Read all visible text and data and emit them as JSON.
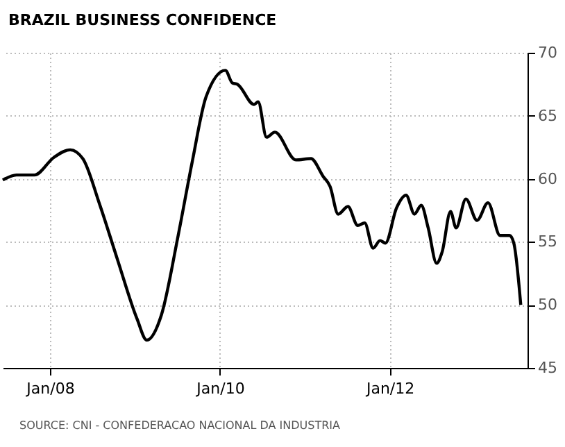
{
  "chart_data": {
    "type": "line",
    "title": "BRAZIL BUSINESS CONFIDENCE",
    "annotations": [
      "SOURCE: CNI - CONFEDERACAO NACIONAL DA INDUSTRIA"
    ],
    "x": [
      "2007-06-12",
      "2007-08-10",
      "2007-10-26",
      "2008-01-18",
      "2008-03-28",
      "2008-05-21",
      "2008-08-01",
      "2008-10-17",
      "2009-01-09",
      "2009-02-20",
      "2009-04-24",
      "2009-07-05",
      "2009-09-03",
      "2009-11-02",
      "2010-01-24",
      "2010-02-23",
      "2010-03-17",
      "2010-05-27",
      "2010-06-14",
      "2010-07-20",
      "2010-08-25",
      "2010-11-23",
      "2011-01-27",
      "2011-03-20",
      "2011-04-19",
      "2011-05-24",
      "2011-07-05",
      "2011-08-16",
      "2011-09-15",
      "2011-10-21",
      "2011-11-20",
      "2011-12-13",
      "2012-01-30",
      "2012-03-11",
      "2012-04-16",
      "2012-05-15",
      "2012-06-14",
      "2012-07-20",
      "2012-08-13",
      "2012-09-18",
      "2012-10-12",
      "2012-11-23",
      "2013-01-10",
      "2013-02-26",
      "2013-04-19",
      "2013-05-30",
      "2013-06-17",
      "2013-07-17"
    ],
    "series": [
      {
        "color": "#000000",
        "values": [
          59.9,
          60.3,
          60.3,
          61.7,
          62.3,
          61.6,
          58.0,
          53.6,
          48.9,
          47.2,
          49.2,
          55.5,
          61.3,
          66.5,
          68.6,
          67.6,
          67.5,
          65.9,
          66.1,
          63.3,
          63.7,
          61.5,
          61.6,
          60.2,
          59.4,
          57.2,
          57.8,
          56.3,
          56.5,
          54.5,
          55.1,
          54.9,
          57.7,
          58.7,
          57.2,
          57.9,
          56.1,
          53.3,
          54.2,
          57.4,
          56.1,
          58.4,
          56.7,
          58.1,
          55.5,
          55.5,
          54.9,
          50.0
        ]
      }
    ],
    "xlim": [
      "2007-06-12",
      "2013-08-15"
    ],
    "xticks": [
      {
        "value": "2008-01-01",
        "label": "Jan/08"
      },
      {
        "value": "2010-01-01",
        "label": "Jan/10"
      },
      {
        "value": "2012-01-01",
        "label": "Jan/12"
      }
    ],
    "ylim": [
      45,
      70
    ],
    "yticks": [
      45,
      50,
      55,
      60,
      65,
      70
    ],
    "grid": true,
    "line_style": "solid",
    "marker": "none"
  }
}
